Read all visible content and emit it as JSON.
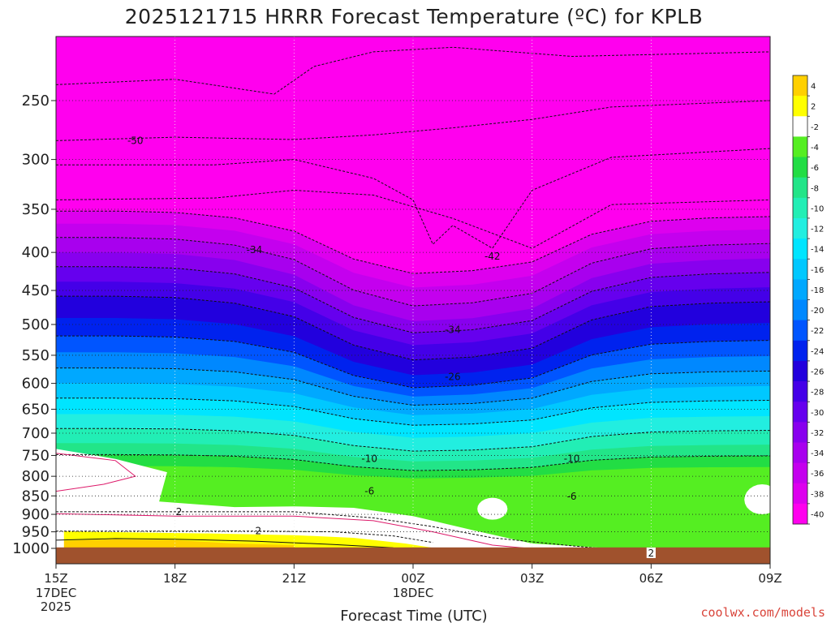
{
  "chart_data": {
    "type": "heatmap",
    "title": "2025121715 HRRR Forecast Temperature (ºC) for KPLB",
    "xlabel": "Forecast Time (UTC)",
    "ylabel": "",
    "x_ticks": [
      {
        "label": "15Z",
        "sub": [
          "17DEC",
          "2025"
        ],
        "hour": 0
      },
      {
        "label": "18Z",
        "sub": [],
        "hour": 3
      },
      {
        "label": "21Z",
        "sub": [],
        "hour": 6
      },
      {
        "label": "00Z",
        "sub": [
          "18DEC"
        ],
        "hour": 9
      },
      {
        "label": "03Z",
        "sub": [],
        "hour": 12
      },
      {
        "label": "06Z",
        "sub": [],
        "hour": 15
      },
      {
        "label": "09Z",
        "sub": [],
        "hour": 18
      }
    ],
    "y_ticks": [
      250,
      300,
      350,
      400,
      450,
      500,
      550,
      600,
      650,
      700,
      750,
      800,
      850,
      900,
      950,
      1000
    ],
    "y_unit": "hPa",
    "xlim": [
      0,
      18
    ],
    "ylim": [
      200,
      1025
    ],
    "y_scale": "log",
    "grid": true,
    "colorbar": {
      "labels": [
        "4",
        "2",
        "-2",
        "-4",
        "-6",
        "-8",
        "-10",
        "-12",
        "-14",
        "-16",
        "-18",
        "-20",
        "-22",
        "-24",
        "-26",
        "-28",
        "-30",
        "-32",
        "-34",
        "-36",
        "-38",
        "-40"
      ],
      "colors": [
        "#ffd000",
        "#ffff00",
        "#ffffff",
        "#55ee22",
        "#22dd44",
        "#22e588",
        "#22eeb5",
        "#22eee0",
        "#00e5ff",
        "#00c8ff",
        "#00a8ff",
        "#0088ff",
        "#0055ff",
        "#0022ee",
        "#2200dd",
        "#4400e8",
        "#6600ee",
        "#8800ee",
        "#a800ee",
        "#c400ee",
        "#dd00ee",
        "#ff00ee"
      ],
      "legend_placement": "right"
    },
    "contour_labels": [
      {
        "text": "-50",
        "hour": 2.0,
        "p": 283
      },
      {
        "text": "-34",
        "hour": 5.0,
        "p": 397
      },
      {
        "text": "-42",
        "hour": 11.0,
        "p": 405
      },
      {
        "text": "-34",
        "hour": 10.0,
        "p": 508
      },
      {
        "text": "-26",
        "hour": 10.0,
        "p": 588
      },
      {
        "text": "-10",
        "hour": 7.9,
        "p": 758
      },
      {
        "text": "-10",
        "hour": 13.0,
        "p": 758
      },
      {
        "text": "-6",
        "hour": 7.9,
        "p": 838
      },
      {
        "text": "-6",
        "hour": 13.0,
        "p": 852
      },
      {
        "text": "2",
        "hour": 3.1,
        "p": 893
      },
      {
        "text": "2",
        "hour": 5.1,
        "p": 948
      },
      {
        "text": "2",
        "hour": 15.0,
        "p": 1015
      }
    ],
    "ground": {
      "color": "#a0522d",
      "p_top": 997
    },
    "credit": "coolwx.com/models"
  }
}
